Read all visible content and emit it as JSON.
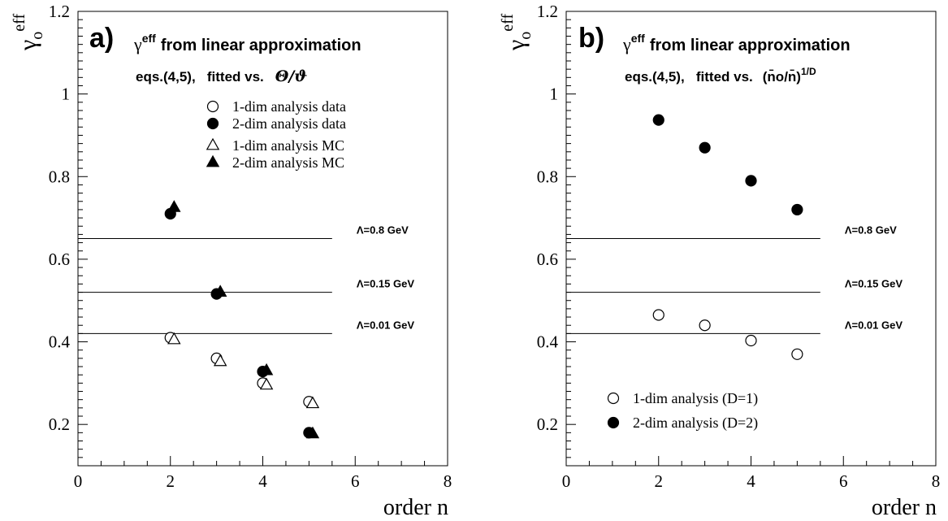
{
  "figure": {
    "ylabel_symbol": "γ",
    "ylabel_sub": "o",
    "ylabel_sup": "eff",
    "xlabel": "order n"
  },
  "chart_data": [
    {
      "type": "scatter",
      "panel_label": "a)",
      "title_symbol": "γ",
      "title_sup": "eff",
      "title_text": "from linear approximation",
      "subtitle_prefix": "eqs.(4,5),   fitted vs.",
      "subtitle_var": "Θ/ϑ",
      "xlabel": "order n",
      "ylabel": "γo eff",
      "xlim": [
        0,
        8
      ],
      "ylim": [
        0.1,
        1.2
      ],
      "xticks": [
        0,
        2,
        4,
        6,
        8
      ],
      "yticks": [
        0.2,
        0.4,
        0.6,
        0.8,
        1,
        1.2
      ],
      "ytick_labels": [
        "0.2",
        "0.4",
        "0.6",
        "0.8",
        "1",
        "1.2"
      ],
      "reference_lines": [
        {
          "label": "Λ=0.8 GeV",
          "y": 0.65,
          "xmax": 5.5
        },
        {
          "label": "Λ=0.15 GeV",
          "y": 0.52,
          "xmax": 5.5
        },
        {
          "label": "Λ=0.01 GeV",
          "y": 0.42,
          "xmax": 5.5
        }
      ],
      "series": [
        {
          "name": "1-dim analysis data",
          "marker": "circle-open",
          "x": [
            2,
            3,
            4,
            5
          ],
          "y": [
            0.41,
            0.36,
            0.3,
            0.255
          ]
        },
        {
          "name": "2-dim analysis data",
          "marker": "circle-filled",
          "x": [
            2,
            3,
            4,
            5
          ],
          "y": [
            0.71,
            0.516,
            0.328,
            0.18
          ]
        },
        {
          "name": "1-dim analysis MC",
          "marker": "triangle-open",
          "x": [
            2.08,
            3.08,
            4.08,
            5.08
          ],
          "y": [
            0.405,
            0.352,
            0.295,
            0.25
          ]
        },
        {
          "name": "2-dim analysis MC",
          "marker": "triangle-filled",
          "x": [
            2.08,
            3.08,
            4.08,
            5.08
          ],
          "y": [
            0.725,
            0.52,
            0.33,
            0.177
          ]
        }
      ],
      "legend_position": "top-right"
    },
    {
      "type": "scatter",
      "panel_label": "b)",
      "title_symbol": "γ",
      "title_sup": "eff",
      "title_text": "from linear approximation",
      "subtitle_prefix": "eqs.(4,5),   fitted vs.",
      "subtitle_var": "(n̄o/n̄)",
      "subtitle_sup": "1/D",
      "xlabel": "order n",
      "ylabel": "γo eff",
      "xlim": [
        0,
        8
      ],
      "ylim": [
        0.1,
        1.2
      ],
      "xticks": [
        0,
        2,
        4,
        6,
        8
      ],
      "yticks": [
        0.2,
        0.4,
        0.6,
        0.8,
        1,
        1.2
      ],
      "ytick_labels": [
        "0.2",
        "0.4",
        "0.6",
        "0.8",
        "1",
        "1.2"
      ],
      "reference_lines": [
        {
          "label": "Λ=0.8 GeV",
          "y": 0.65,
          "xmax": 5.5
        },
        {
          "label": "Λ=0.15 GeV",
          "y": 0.52,
          "xmax": 5.5
        },
        {
          "label": "Λ=0.01 GeV",
          "y": 0.42,
          "xmax": 5.5
        }
      ],
      "series": [
        {
          "name": "1-dim analysis  (D=1)",
          "marker": "circle-open",
          "x": [
            2,
            3,
            4,
            5
          ],
          "y": [
            0.465,
            0.44,
            0.403,
            0.37
          ]
        },
        {
          "name": "2-dim analysis  (D=2)",
          "marker": "circle-filled",
          "x": [
            2,
            3,
            4,
            5
          ],
          "y": [
            0.937,
            0.87,
            0.79,
            0.72
          ]
        }
      ],
      "legend_position": "bottom-left"
    }
  ]
}
